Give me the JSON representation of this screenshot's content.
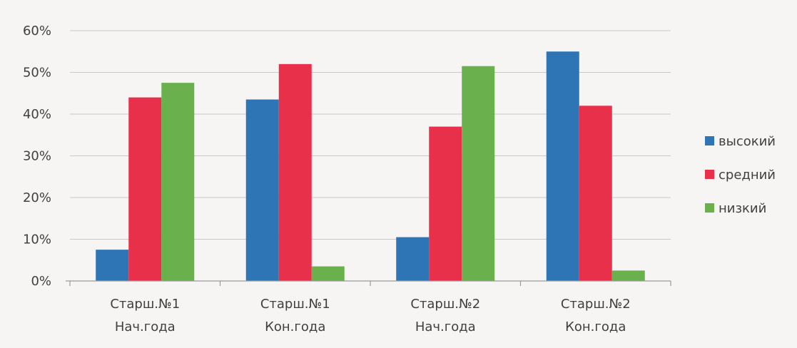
{
  "chart_data": {
    "type": "bar",
    "categories": [
      [
        "Старш.№1",
        "Нач.года"
      ],
      [
        "Старш.№1",
        "Кон.года"
      ],
      [
        "Старш.№2",
        "Нач.года"
      ],
      [
        "Старш.№2",
        "Кон.года"
      ]
    ],
    "series": [
      {
        "name": "высокий",
        "color": "#2e75b6",
        "values": [
          7.5,
          43.5,
          10.5,
          55
        ]
      },
      {
        "name": "средний",
        "color": "#e8304a",
        "values": [
          44,
          52,
          37,
          42
        ]
      },
      {
        "name": "низкий",
        "color": "#6ab04c",
        "values": [
          47.5,
          3.5,
          51.5,
          2.5
        ]
      }
    ],
    "yticks": [
      "0%",
      "10%",
      "20%",
      "30%",
      "40%",
      "50%",
      "60%"
    ],
    "ylim": [
      0,
      60
    ],
    "grid": true,
    "legend_position": "right"
  }
}
